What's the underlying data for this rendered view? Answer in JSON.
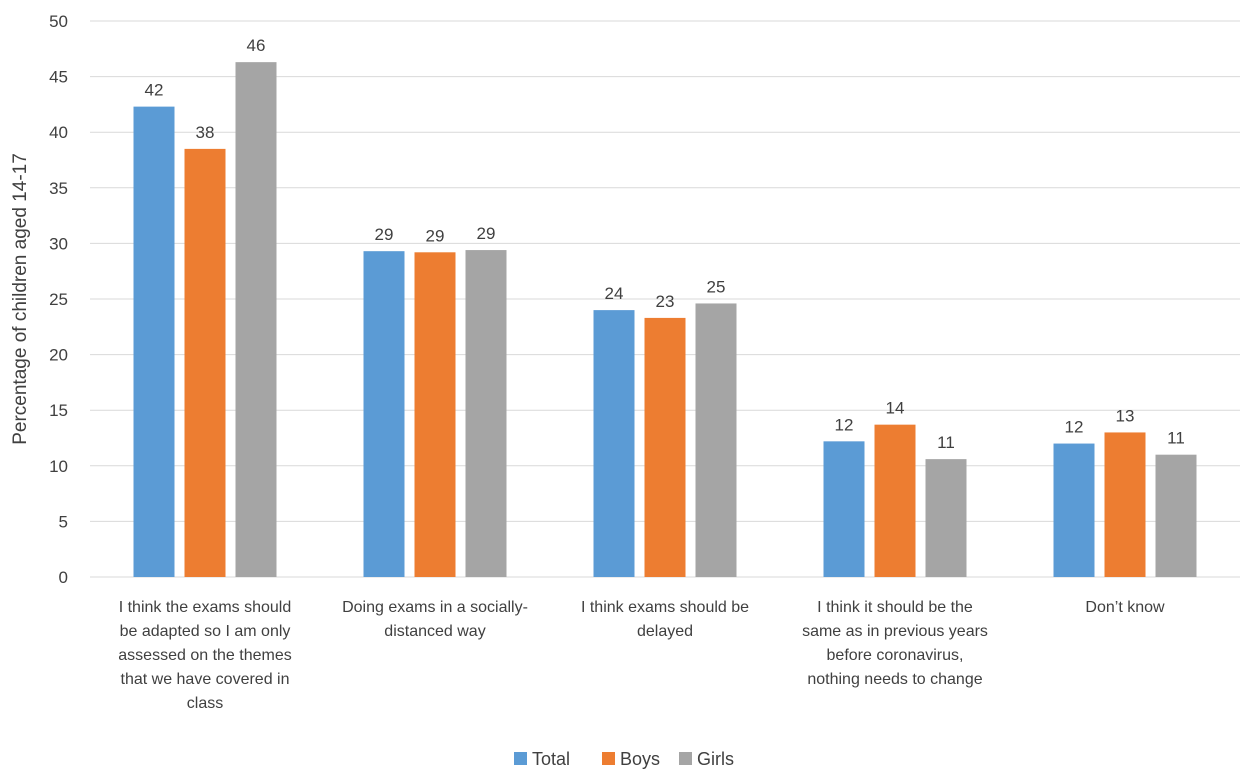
{
  "chart_data": {
    "type": "bar",
    "ylabel": "Percentage of children aged 14-17",
    "ylim": [
      0,
      50
    ],
    "yticks": [
      0,
      5,
      10,
      15,
      20,
      25,
      30,
      35,
      40,
      45,
      50
    ],
    "grid": true,
    "legend_position": "bottom",
    "categories": [
      [
        "I think the exams should",
        "be adapted so I am only",
        "assessed on the themes",
        "that we have covered in",
        "class"
      ],
      [
        "Doing exams in a socially-",
        "distanced way"
      ],
      [
        "I think exams should be",
        "delayed"
      ],
      [
        "I think it should be the",
        "same as in previous years",
        "before coronavirus,",
        "nothing needs to change"
      ],
      [
        "Don’t know"
      ]
    ],
    "series": [
      {
        "name": "Total",
        "color": "#5B9BD5",
        "values": [
          42.3,
          29.3,
          24.0,
          12.2,
          12.0
        ],
        "labels": [
          "42",
          "29",
          "24",
          "12",
          "12"
        ]
      },
      {
        "name": "Boys",
        "color": "#ED7D31",
        "values": [
          38.5,
          29.2,
          23.3,
          13.7,
          13.0
        ],
        "labels": [
          "38",
          "29",
          "23",
          "14",
          "13"
        ]
      },
      {
        "name": "Girls",
        "color": "#A5A5A5",
        "values": [
          46.3,
          29.4,
          24.6,
          10.6,
          11.0
        ],
        "labels": [
          "46",
          "29",
          "25",
          "11",
          "11"
        ]
      }
    ]
  }
}
